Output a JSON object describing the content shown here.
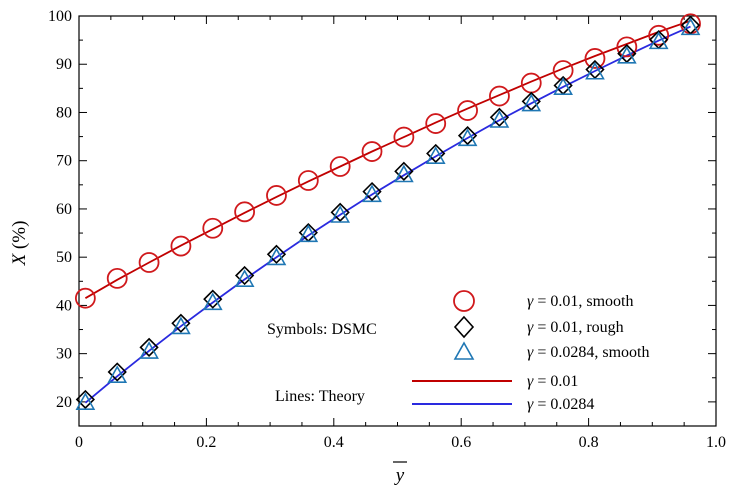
{
  "chart_data": {
    "type": "line",
    "xlabel": "y",
    "ylabel_var": "X",
    "ylabel_unit": " (%)",
    "xlim": [
      0,
      1.0
    ],
    "ylim": [
      15,
      100
    ],
    "xticks": [
      "0",
      "0.2",
      "0.4",
      "0.6",
      "0.8",
      "1.0"
    ],
    "yticks": [
      "20",
      "30",
      "40",
      "50",
      "60",
      "70",
      "80",
      "90",
      "100"
    ],
    "grid": false,
    "annotations": {
      "symbols": "Symbols: DSMC",
      "lines": "Lines: Theory"
    },
    "x": [
      0.01,
      0.06,
      0.11,
      0.16,
      0.21,
      0.26,
      0.31,
      0.36,
      0.41,
      0.46,
      0.51,
      0.56,
      0.61,
      0.66,
      0.71,
      0.76,
      0.81,
      0.86,
      0.91,
      0.96
    ],
    "series": [
      {
        "kind": "marker",
        "marker": "circle",
        "color": "#d0191c",
        "label_var": "γ",
        "label_text": " = 0.01, smooth",
        "values": [
          41.5,
          45.6,
          48.9,
          52.3,
          56.0,
          59.4,
          62.8,
          65.9,
          68.8,
          71.9,
          74.9,
          77.7,
          80.4,
          83.4,
          86.1,
          88.7,
          91.2,
          93.6,
          96.0,
          98.4
        ]
      },
      {
        "kind": "marker",
        "marker": "diamond",
        "color": "#000000",
        "label_var": "γ",
        "label_text": " = 0.01, rough",
        "values": [
          20.5,
          26.2,
          31.3,
          36.3,
          41.3,
          46.2,
          50.6,
          55.1,
          59.3,
          63.6,
          67.8,
          71.5,
          75.2,
          79.0,
          82.3,
          85.6,
          88.9,
          92.2,
          95.1,
          98.1
        ]
      },
      {
        "kind": "marker",
        "marker": "triangle",
        "color": "#1f77b4",
        "label_var": "γ",
        "label_text": " = 0.0284, smooth",
        "values": [
          19.9,
          25.5,
          30.5,
          35.6,
          40.6,
          45.4,
          49.9,
          54.7,
          58.7,
          63.0,
          67.1,
          70.9,
          74.6,
          78.4,
          81.8,
          85.2,
          88.4,
          91.7,
          94.7,
          97.6
        ]
      },
      {
        "kind": "line",
        "color": "#c00000",
        "label_var": "γ",
        "label_text": " = 0.01",
        "values": [
          41.5,
          45.3,
          48.9,
          52.4,
          55.8,
          59.2,
          62.5,
          65.7,
          68.8,
          71.9,
          74.9,
          77.9,
          80.8,
          83.6,
          86.4,
          89.1,
          91.7,
          94.2,
          96.7,
          99.0
        ]
      },
      {
        "kind": "line",
        "color": "#2a2adf",
        "label_var": "γ",
        "label_text": " = 0.0284",
        "values": [
          19.8,
          25.3,
          30.6,
          35.7,
          40.6,
          45.4,
          50.0,
          54.5,
          58.8,
          63.0,
          67.0,
          70.9,
          74.7,
          78.4,
          81.9,
          85.3,
          88.6,
          91.8,
          94.9,
          97.8
        ]
      }
    ]
  }
}
